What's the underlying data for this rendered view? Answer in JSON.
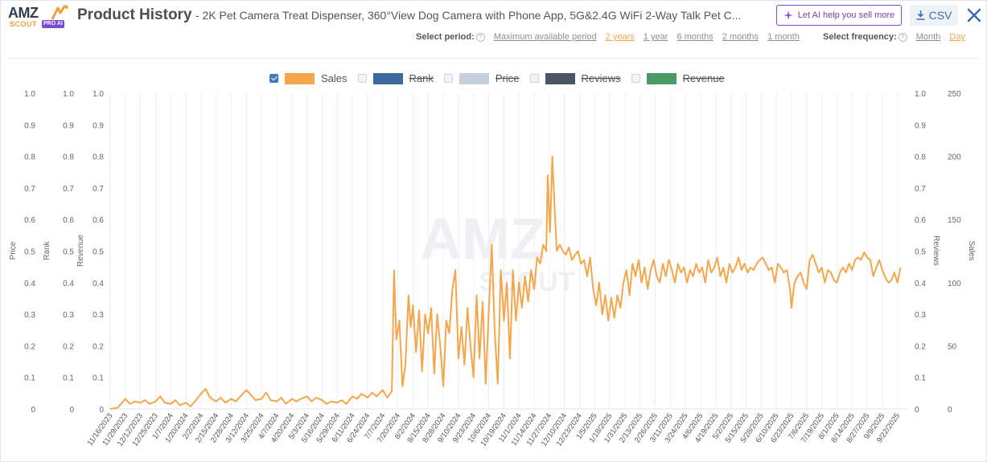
{
  "header": {
    "logo_text": "AMZ",
    "logo_sub": "SCOUT",
    "logo_badge": "PRO AI",
    "title": "Product History",
    "subtitle": "- 2K Pet Camera Treat Dispenser, 360°View Dog Camera with Phone App, 5G&2.4G WiFi 2-Way Talk Pet C...",
    "ai_button": "Let AI help you sell more",
    "csv_button": "CSV"
  },
  "period": {
    "label": "Select period:",
    "options": [
      "Maximum available period",
      "2 years",
      "1 year",
      "6 months",
      "2 months",
      "1 month"
    ],
    "active": "2 years"
  },
  "frequency": {
    "label": "Select frequency:",
    "options": [
      "Month",
      "Day"
    ],
    "active": "Day"
  },
  "legend": [
    {
      "name": "Sales",
      "color": "#f5a54a",
      "checked": true
    },
    {
      "name": "Rank",
      "color": "#3d6a9e",
      "checked": false
    },
    {
      "name": "Price",
      "color": "#c4cfdb",
      "checked": false
    },
    {
      "name": "Reviews",
      "color": "#4a5565",
      "checked": false
    },
    {
      "name": "Revenue",
      "color": "#4a9a66",
      "checked": false
    }
  ],
  "chart_data": {
    "type": "line",
    "left_axes": [
      {
        "label": "Price",
        "ticks": [
          "0",
          "0.1",
          "0.2",
          "0.3",
          "0.4",
          "0.5",
          "0.6",
          "0.7",
          "0.8",
          "0.9",
          "1.0"
        ]
      },
      {
        "label": "Rank",
        "ticks": [
          "0",
          "0.1",
          "0.2",
          "0.3",
          "0.4",
          "0.5",
          "0.6",
          "0.7",
          "0.8",
          "0.9",
          "1.0"
        ]
      },
      {
        "label": "Revenue",
        "ticks": [
          "0",
          "0.1",
          "0.2",
          "0.3",
          "0.4",
          "0.5",
          "0.6",
          "0.7",
          "0.8",
          "0.9",
          "1.0"
        ]
      }
    ],
    "right_axes": [
      {
        "label": "Reviews",
        "ticks": [
          "0",
          "0.1",
          "0.2",
          "0.3",
          "0.4",
          "0.5",
          "0.6",
          "0.7",
          "0.8",
          "0.9",
          "1.0"
        ]
      },
      {
        "label": "Sales",
        "ticks": [
          "0",
          "50",
          "100",
          "150",
          "200",
          "250"
        ]
      }
    ],
    "ylim": [
      0,
      250
    ],
    "x_ticks": [
      "11/16/2023",
      "11/29/2023",
      "12/12/2023",
      "12/25/2023",
      "1/7/2024",
      "1/20/2024",
      "2/2/2024",
      "2/15/2024",
      "2/28/2024",
      "3/12/2024",
      "3/25/2024",
      "4/7/2024",
      "4/20/2024",
      "5/3/2024",
      "5/16/2024",
      "5/29/2024",
      "6/11/2024",
      "6/24/2024",
      "7/7/2024",
      "7/20/2024",
      "8/2/2024",
      "8/15/2024",
      "8/28/2024",
      "9/10/2024",
      "9/23/2024",
      "10/6/2024",
      "10/19/2024",
      "11/1/2024",
      "11/14/2024",
      "11/27/2024",
      "12/10/2024",
      "12/23/2024",
      "1/5/2025",
      "1/18/2025",
      "1/31/2025",
      "2/13/2025",
      "2/26/2025",
      "3/11/2025",
      "3/24/2025",
      "4/6/2025",
      "4/19/2025",
      "5/2/2025",
      "5/15/2025",
      "5/28/2025",
      "6/10/2025",
      "6/23/2025",
      "7/6/2025",
      "7/19/2025",
      "8/1/2025",
      "8/14/2025",
      "8/27/2025",
      "9/9/2025",
      "9/22/2025"
    ],
    "series": [
      {
        "name": "Sales",
        "color": "#f5a54a",
        "points": [
          [
            0,
            0
          ],
          [
            0.5,
            1
          ],
          [
            1,
            8
          ],
          [
            1.3,
            4
          ],
          [
            1.6,
            6
          ],
          [
            2,
            5
          ],
          [
            2.3,
            7
          ],
          [
            2.6,
            4
          ],
          [
            3,
            6
          ],
          [
            3.3,
            10
          ],
          [
            3.6,
            5
          ],
          [
            4,
            4
          ],
          [
            4.3,
            7
          ],
          [
            4.6,
            3
          ],
          [
            5,
            5
          ],
          [
            5.3,
            2
          ],
          [
            5.6,
            6
          ],
          [
            6,
            12
          ],
          [
            6.3,
            16
          ],
          [
            6.6,
            9
          ],
          [
            7,
            6
          ],
          [
            7.3,
            9
          ],
          [
            7.6,
            5
          ],
          [
            8,
            8
          ],
          [
            8.3,
            6
          ],
          [
            8.6,
            10
          ],
          [
            9,
            15
          ],
          [
            9.3,
            11
          ],
          [
            9.6,
            7
          ],
          [
            10,
            8
          ],
          [
            10.3,
            13
          ],
          [
            10.6,
            7
          ],
          [
            11,
            6
          ],
          [
            11.3,
            9
          ],
          [
            11.6,
            4
          ],
          [
            12,
            8
          ],
          [
            12.3,
            6
          ],
          [
            12.6,
            8
          ],
          [
            13,
            10
          ],
          [
            13.3,
            6
          ],
          [
            13.6,
            9
          ],
          [
            14,
            7
          ],
          [
            14.3,
            4
          ],
          [
            14.6,
            6
          ],
          [
            15,
            5
          ],
          [
            15.3,
            7
          ],
          [
            15.6,
            4
          ],
          [
            16,
            10
          ],
          [
            16.3,
            8
          ],
          [
            16.6,
            12
          ],
          [
            17,
            9
          ],
          [
            17.3,
            13
          ],
          [
            17.6,
            10
          ],
          [
            18,
            15
          ],
          [
            18.3,
            9
          ],
          [
            18.6,
            14
          ],
          [
            18.75,
            110
          ],
          [
            18.9,
            55
          ],
          [
            19.1,
            70
          ],
          [
            19.3,
            18
          ],
          [
            19.5,
            35
          ],
          [
            19.7,
            90
          ],
          [
            19.85,
            65
          ],
          [
            20,
            82
          ],
          [
            20.2,
            45
          ],
          [
            20.4,
            78
          ],
          [
            20.6,
            30
          ],
          [
            20.8,
            75
          ],
          [
            21,
            60
          ],
          [
            21.2,
            80
          ],
          [
            21.4,
            28
          ],
          [
            21.6,
            75
          ],
          [
            21.8,
            50
          ],
          [
            22,
            18
          ],
          [
            22.2,
            70
          ],
          [
            22.4,
            60
          ],
          [
            22.6,
            95
          ],
          [
            22.8,
            110
          ],
          [
            23,
            40
          ],
          [
            23.2,
            65
          ],
          [
            23.4,
            35
          ],
          [
            23.6,
            80
          ],
          [
            23.8,
            50
          ],
          [
            24,
            25
          ],
          [
            24.2,
            90
          ],
          [
            24.4,
            40
          ],
          [
            24.6,
            85
          ],
          [
            24.8,
            20
          ],
          [
            25,
            75
          ],
          [
            25.2,
            130
          ],
          [
            25.4,
            60
          ],
          [
            25.6,
            20
          ],
          [
            25.8,
            110
          ],
          [
            26,
            70
          ],
          [
            26.2,
            100
          ],
          [
            26.4,
            40
          ],
          [
            26.6,
            110
          ],
          [
            26.8,
            70
          ],
          [
            27,
            100
          ],
          [
            27.2,
            80
          ],
          [
            27.4,
            105
          ],
          [
            27.6,
            85
          ],
          [
            27.8,
            110
          ],
          [
            28,
            95
          ],
          [
            28.2,
            120
          ],
          [
            28.4,
            115
          ],
          [
            28.6,
            130
          ],
          [
            28.8,
            125
          ],
          [
            28.9,
            185
          ],
          [
            29.05,
            140
          ],
          [
            29.2,
            200
          ],
          [
            29.35,
            160
          ],
          [
            29.5,
            125
          ],
          [
            29.7,
            130
          ],
          [
            29.9,
            125
          ],
          [
            30.1,
            122
          ],
          [
            30.3,
            128
          ],
          [
            30.5,
            118
          ],
          [
            30.7,
            122
          ],
          [
            30.9,
            125
          ],
          [
            31.1,
            115
          ],
          [
            31.3,
            118
          ],
          [
            31.5,
            105
          ],
          [
            31.7,
            120
          ],
          [
            31.9,
            95
          ],
          [
            32.1,
            82
          ],
          [
            32.3,
            100
          ],
          [
            32.5,
            75
          ],
          [
            32.7,
            90
          ],
          [
            32.9,
            70
          ],
          [
            33.1,
            88
          ],
          [
            33.3,
            72
          ],
          [
            33.5,
            90
          ],
          [
            33.7,
            80
          ],
          [
            33.9,
            100
          ],
          [
            34.1,
            110
          ],
          [
            34.3,
            90
          ],
          [
            34.5,
            115
          ],
          [
            34.7,
            105
          ],
          [
            34.9,
            118
          ],
          [
            35.1,
            100
          ],
          [
            35.3,
            112
          ],
          [
            35.5,
            95
          ],
          [
            35.7,
            110
          ],
          [
            35.9,
            118
          ],
          [
            36.1,
            105
          ],
          [
            36.3,
            100
          ],
          [
            36.5,
            115
          ],
          [
            36.7,
            105
          ],
          [
            36.9,
            118
          ],
          [
            37.1,
            110
          ],
          [
            37.3,
            100
          ],
          [
            37.5,
            115
          ],
          [
            37.7,
            108
          ],
          [
            37.9,
            112
          ],
          [
            38.1,
            100
          ],
          [
            38.3,
            110
          ],
          [
            38.5,
            105
          ],
          [
            38.7,
            115
          ],
          [
            38.9,
            108
          ],
          [
            39.1,
            112
          ],
          [
            39.3,
            100
          ],
          [
            39.5,
            118
          ],
          [
            39.7,
            108
          ],
          [
            39.9,
            112
          ],
          [
            40.1,
            120
          ],
          [
            40.3,
            105
          ],
          [
            40.5,
            112
          ],
          [
            40.7,
            100
          ],
          [
            40.9,
            115
          ],
          [
            41.1,
            108
          ],
          [
            41.3,
            112
          ],
          [
            41.5,
            120
          ],
          [
            41.7,
            110
          ],
          [
            41.9,
            115
          ],
          [
            42.1,
            108
          ],
          [
            42.3,
            112
          ],
          [
            42.5,
            110
          ],
          [
            42.7,
            115
          ],
          [
            42.9,
            118
          ],
          [
            43.1,
            120
          ],
          [
            43.3,
            115
          ],
          [
            43.5,
            110
          ],
          [
            43.7,
            112
          ],
          [
            43.9,
            100
          ],
          [
            44.1,
            115
          ],
          [
            44.3,
            112
          ],
          [
            44.5,
            108
          ],
          [
            44.7,
            110
          ],
          [
            44.9,
            95
          ],
          [
            45,
            80
          ],
          [
            45.2,
            100
          ],
          [
            45.4,
            105
          ],
          [
            45.6,
            108
          ],
          [
            45.8,
            100
          ],
          [
            46,
            95
          ],
          [
            46.2,
            118
          ],
          [
            46.4,
            122
          ],
          [
            46.6,
            115
          ],
          [
            46.8,
            108
          ],
          [
            47,
            112
          ],
          [
            47.2,
            100
          ],
          [
            47.4,
            110
          ],
          [
            47.6,
            108
          ],
          [
            47.8,
            102
          ],
          [
            48,
            100
          ],
          [
            48.2,
            108
          ],
          [
            48.4,
            112
          ],
          [
            48.6,
            108
          ],
          [
            48.8,
            115
          ],
          [
            49,
            110
          ],
          [
            49.2,
            118
          ],
          [
            49.4,
            120
          ],
          [
            49.6,
            118
          ],
          [
            49.8,
            124
          ],
          [
            50,
            120
          ],
          [
            50.2,
            118
          ],
          [
            50.4,
            105
          ],
          [
            50.6,
            112
          ],
          [
            50.8,
            118
          ],
          [
            51,
            110
          ],
          [
            51.2,
            104
          ],
          [
            51.4,
            100
          ],
          [
            51.6,
            102
          ],
          [
            51.8,
            108
          ],
          [
            52,
            100
          ],
          [
            52.2,
            112
          ]
        ]
      }
    ],
    "watermark": "AMZ SCOUT"
  }
}
